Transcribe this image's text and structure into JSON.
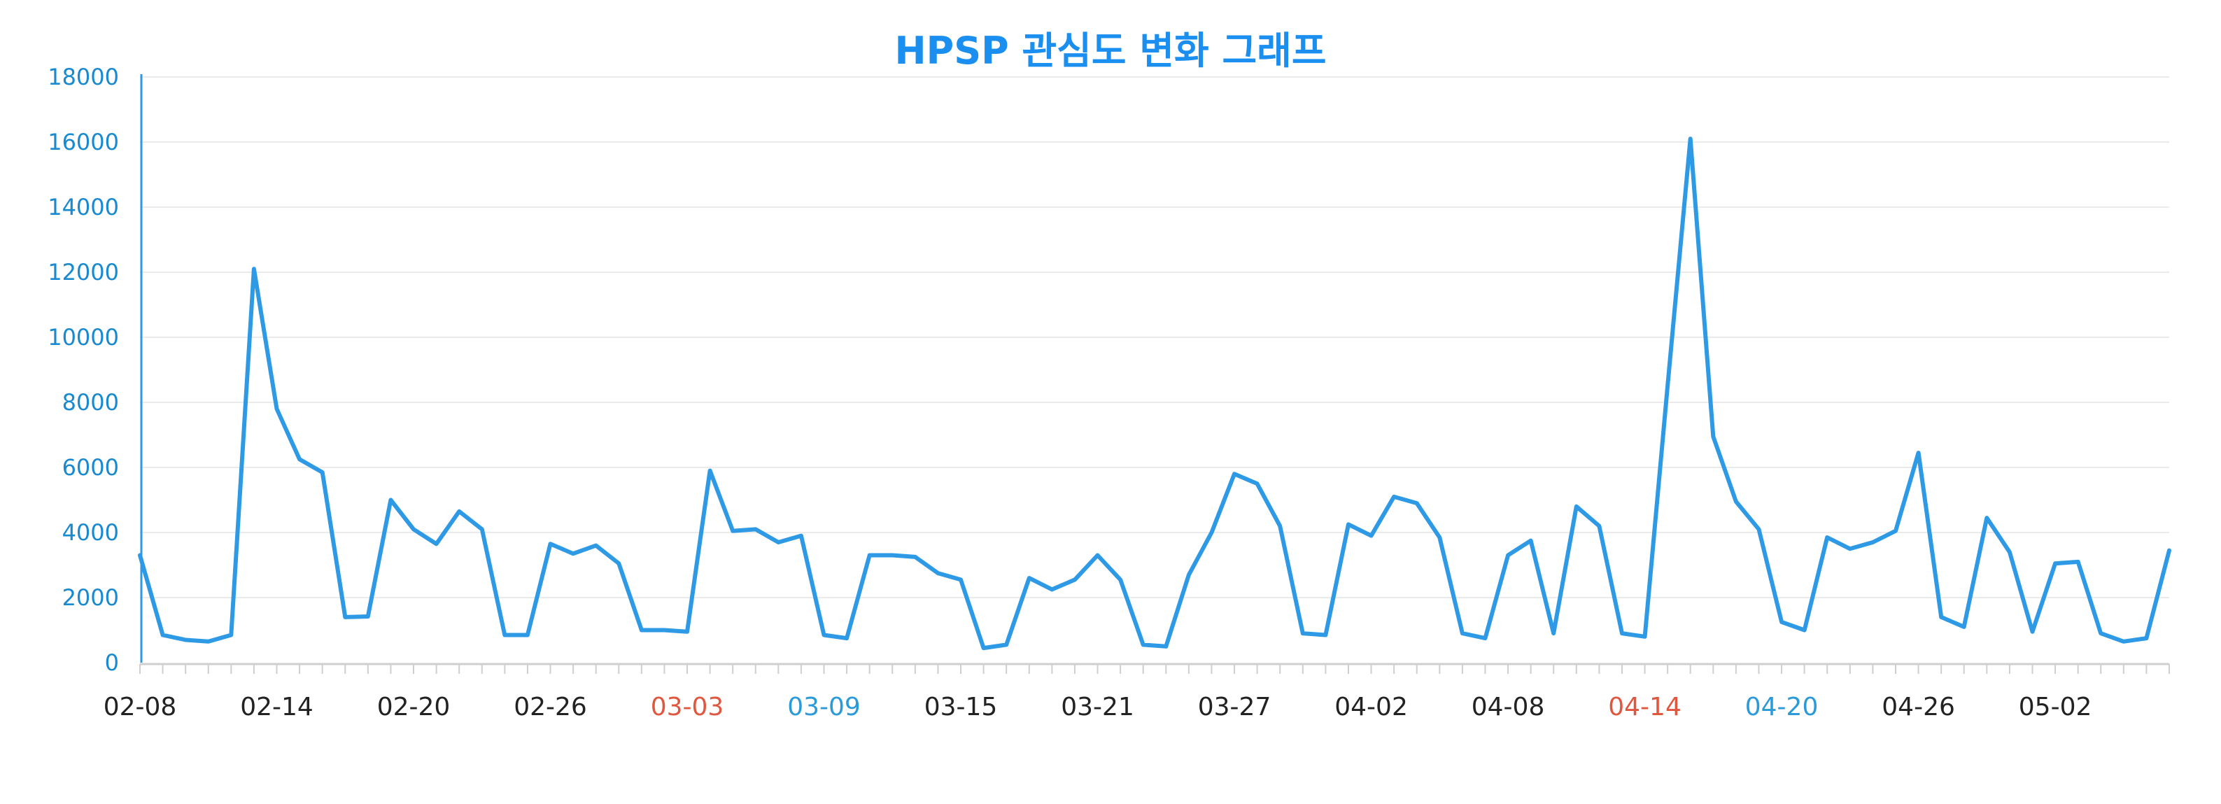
{
  "colors": {
    "line": "#2e9ae6",
    "title": "#1a8ff0",
    "ytick": "#1a8ad0",
    "xtick_default": "#222222",
    "xtick_red": "#e0573f",
    "xtick_blue": "#2b9ad8",
    "grid": "#ebebeb",
    "axis": "#cfcfcf",
    "yaxis": "#2e9ae6"
  },
  "chart_data": {
    "type": "line",
    "title": "HPSP 관심도 변화 그래프",
    "xlabel": "",
    "ylabel": "",
    "ylim": [
      0,
      18000
    ],
    "yticks": [
      0,
      2000,
      4000,
      6000,
      8000,
      10000,
      12000,
      14000,
      16000,
      18000
    ],
    "grid": true,
    "legend": "none",
    "x_start_date": "02-08",
    "x_tick_labels": [
      {
        "label": "02-08",
        "color": "default"
      },
      {
        "label": "02-14",
        "color": "default"
      },
      {
        "label": "02-20",
        "color": "default"
      },
      {
        "label": "02-26",
        "color": "default"
      },
      {
        "label": "03-03",
        "color": "red"
      },
      {
        "label": "03-09",
        "color": "blue"
      },
      {
        "label": "03-15",
        "color": "default"
      },
      {
        "label": "03-21",
        "color": "default"
      },
      {
        "label": "03-27",
        "color": "default"
      },
      {
        "label": "04-02",
        "color": "default"
      },
      {
        "label": "04-08",
        "color": "default"
      },
      {
        "label": "04-14",
        "color": "red"
      },
      {
        "label": "04-20",
        "color": "blue"
      },
      {
        "label": "04-26",
        "color": "default"
      },
      {
        "label": "05-02",
        "color": "default"
      }
    ],
    "series": [
      {
        "values": [
          3300,
          850,
          700,
          650,
          850,
          12100,
          7800,
          6250,
          5850,
          1400,
          1420,
          5000,
          4100,
          3650,
          4650,
          4100,
          850,
          850,
          3650,
          3350,
          3600,
          3050,
          1000,
          1000,
          950,
          5900,
          4050,
          4100,
          3700,
          3900,
          850,
          750,
          3300,
          3300,
          3250,
          2750,
          2550,
          450,
          550,
          2600,
          2250,
          2550,
          3300,
          2550,
          550,
          500,
          2700,
          4000,
          5800,
          5500,
          4200,
          900,
          850,
          4250,
          3900,
          5100,
          4900,
          3850,
          900,
          750,
          3300,
          3750,
          900,
          4800,
          4200,
          900,
          800,
          8500,
          16100,
          6950,
          4950,
          4100,
          1250,
          1000,
          3850,
          3500,
          3700,
          4050,
          6450,
          1400,
          1100,
          4450,
          3400,
          950,
          3050,
          3100,
          900,
          650,
          750,
          3450
        ]
      }
    ]
  }
}
